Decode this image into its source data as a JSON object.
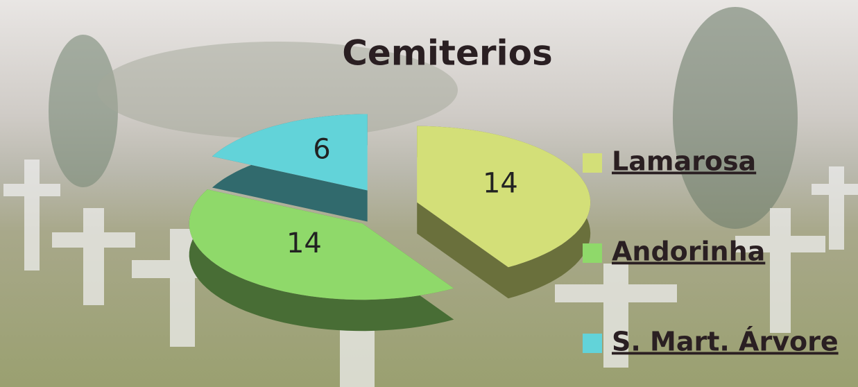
{
  "chart_data": {
    "type": "pie",
    "title": "Cemiterios",
    "categories": [
      "Lamarosa",
      "Andorinha",
      "S. Mart. Árvore"
    ],
    "values": [
      14,
      14,
      6
    ],
    "colors": [
      "#d3df78",
      "#8fd96a",
      "#62d3d9"
    ],
    "legend": "right"
  }
}
